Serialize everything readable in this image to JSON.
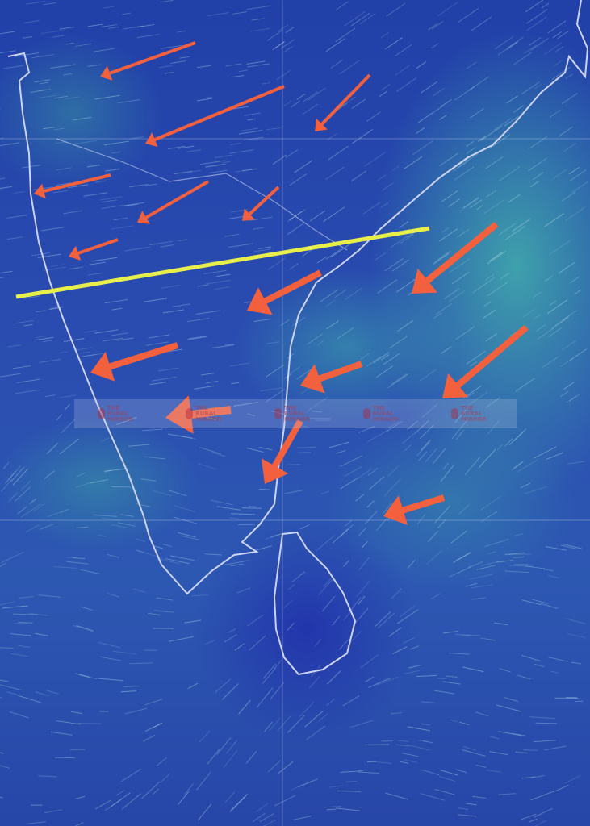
{
  "map": {
    "type": "wind-streamline-map",
    "region": "Southern India and Sri Lanka",
    "colors": {
      "ocean_low_wind": "#2140a8",
      "high_wind": "#46bea9",
      "coastline": "#c8d0f0",
      "annotation_arrows": "#f2603e",
      "annotation_line": "#e8ef4a"
    }
  },
  "watermark": {
    "text": "The Rural Mirror",
    "repeat": 5
  }
}
